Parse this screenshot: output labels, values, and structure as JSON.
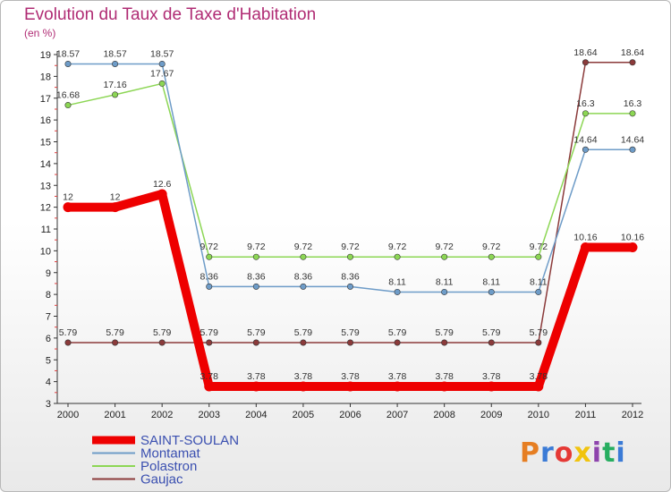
{
  "title": "Evolution du Taux de Taxe d'Habitation",
  "unit": "(en %)",
  "logo": "Proxiti",
  "chart_data": {
    "type": "line",
    "title": "Evolution du Taux de Taxe d'Habitation",
    "ylabel": "(en %)",
    "x": [
      "2000",
      "2001",
      "2002",
      "2003",
      "2004",
      "2005",
      "2006",
      "2007",
      "2008",
      "2009",
      "2010",
      "2011",
      "2012"
    ],
    "ylim": [
      3,
      19
    ],
    "yticks": [
      "3",
      "4",
      "5",
      "6",
      "7",
      "8",
      "9",
      "10",
      "11",
      "12",
      "13",
      "14",
      "15",
      "16",
      "17",
      "18",
      "19"
    ],
    "grid": false,
    "legend_position": "bottom-left",
    "series": [
      {
        "name": "SAINT-SOULAN",
        "color": "#ee0000",
        "width": 10,
        "values": [
          12,
          12,
          12.6,
          3.78,
          3.78,
          3.78,
          3.78,
          3.78,
          3.78,
          3.78,
          3.78,
          10.16,
          10.16
        ],
        "labels": [
          "12",
          "12",
          "12.6",
          "3.78",
          "3.78",
          "3.78",
          "3.78",
          "3.78",
          "3.78",
          "3.78",
          "3.78",
          "10.16",
          "10.16"
        ]
      },
      {
        "name": "Montamat",
        "color": "#6e9cc8",
        "width": 1.5,
        "values": [
          18.57,
          18.57,
          18.57,
          8.36,
          8.36,
          8.36,
          8.36,
          8.11,
          8.11,
          8.11,
          8.11,
          14.64,
          14.64
        ],
        "labels": [
          "18.57",
          "18.57",
          "18.57",
          "8.36",
          "8.36",
          "8.36",
          "8.36",
          "8.11",
          "8.11",
          "8.11",
          "8.11",
          "14.64",
          "14.64"
        ]
      },
      {
        "name": "Polastron",
        "color": "#8cd654",
        "width": 1.5,
        "values": [
          16.68,
          17.16,
          17.67,
          9.72,
          9.72,
          9.72,
          9.72,
          9.72,
          9.72,
          9.72,
          9.72,
          16.3,
          16.3
        ],
        "labels": [
          "16.68",
          "17.16",
          "17.67",
          "9.72",
          "9.72",
          "9.72",
          "9.72",
          "9.72",
          "9.72",
          "9.72",
          "9.72",
          "16.3",
          "16.3"
        ]
      },
      {
        "name": "Gaujac",
        "color": "#8b3a3a",
        "width": 1.5,
        "values": [
          5.79,
          5.79,
          5.79,
          5.79,
          5.79,
          5.79,
          5.79,
          5.79,
          5.79,
          5.79,
          5.79,
          18.64,
          18.64
        ],
        "labels": [
          "5.79",
          "5.79",
          "5.79",
          "5.79",
          "5.79",
          "5.79",
          "5.79",
          "5.79",
          "5.79",
          "5.79",
          "5.79",
          "18.64",
          "18.64"
        ]
      }
    ]
  }
}
